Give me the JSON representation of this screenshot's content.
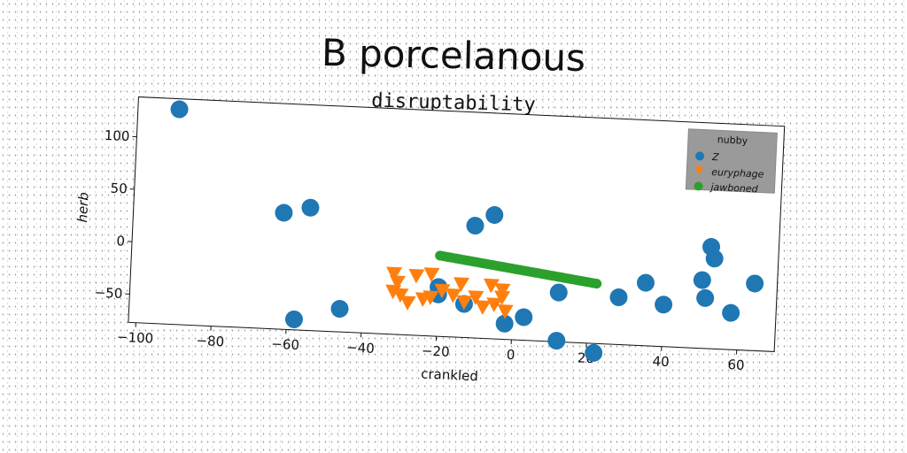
{
  "chart_data": {
    "type": "scatter",
    "title": "B porcelanous",
    "subtitle": "disruptability",
    "xlabel": "crankled",
    "ylabel": "herb",
    "xlim": [
      -102,
      70
    ],
    "ylim": [
      -77,
      138
    ],
    "xticks": [
      -100,
      -80,
      -60,
      -40,
      -20,
      0,
      20,
      40,
      60
    ],
    "yticks": [
      -50,
      0,
      50,
      100
    ],
    "legend": {
      "title": "nubby",
      "placement": "top-right",
      "entries": [
        "Z",
        "euryphage",
        "jawboned"
      ]
    },
    "series": [
      {
        "name": "Z",
        "color": "#1f77b4",
        "marker": "circle",
        "points": [
          [
            -91,
            128
          ],
          [
            -62,
            34
          ],
          [
            -55,
            40
          ],
          [
            -58,
            -67
          ],
          [
            -46,
            -55
          ],
          [
            -11,
            30
          ],
          [
            -6,
            41
          ],
          [
            -20,
            -30
          ],
          [
            -20,
            -37
          ],
          [
            -13,
            -45
          ],
          [
            -2,
            -62
          ],
          [
            3,
            -55
          ],
          [
            12,
            -30
          ],
          [
            12,
            -76
          ],
          [
            22,
            -86
          ],
          [
            28,
            -32
          ],
          [
            35,
            -17
          ],
          [
            40,
            -37
          ],
          [
            50,
            -12
          ],
          [
            51,
            -29
          ],
          [
            52,
            20
          ],
          [
            53,
            9
          ],
          [
            58,
            -42
          ],
          [
            64,
            -13
          ]
        ]
      },
      {
        "name": "euryphage",
        "color": "#ff7f0e",
        "marker": "triangle_down",
        "points": [
          [
            -32,
            -19
          ],
          [
            -31,
            -27
          ],
          [
            -32,
            -36
          ],
          [
            -30,
            -39
          ],
          [
            -28,
            -46
          ],
          [
            -26,
            -20
          ],
          [
            -22,
            -18
          ],
          [
            -24,
            -42
          ],
          [
            -22,
            -40
          ],
          [
            -19,
            -33
          ],
          [
            -16,
            -37
          ],
          [
            -14,
            -26
          ],
          [
            -13,
            -43
          ],
          [
            -10,
            -38
          ],
          [
            -8,
            -47
          ],
          [
            -6,
            -26
          ],
          [
            -5,
            -44
          ],
          [
            -3,
            -30
          ],
          [
            -3,
            -37
          ],
          [
            -2,
            -50
          ]
        ]
      },
      {
        "name": "jawboned",
        "color": "#2ca02c",
        "marker": "circle",
        "line_from": [
          -20,
          0
        ],
        "line_to": [
          22,
          -20
        ],
        "n_points": 60
      }
    ]
  }
}
